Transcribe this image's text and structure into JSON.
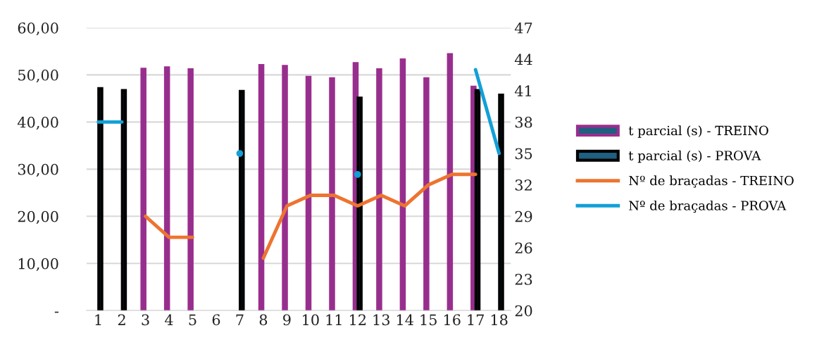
{
  "chart_data": {
    "type": "bar",
    "categories": [
      "1",
      "2",
      "3",
      "4",
      "5",
      "6",
      "7",
      "8",
      "9",
      "10",
      "11",
      "12",
      "13",
      "14",
      "15",
      "16",
      "17",
      "18"
    ],
    "series": [
      {
        "name": "t parcial (s) - TREINO",
        "color": "#9b2d8e",
        "values": [
          null,
          null,
          51.2,
          51.5,
          51.1,
          null,
          null,
          52.0,
          51.8,
          49.5,
          49.2,
          52.4,
          51.1,
          53.2,
          49.2,
          54.3,
          47.4,
          null
        ]
      },
      {
        "name": "t parcial (s) - PROVA",
        "color": "#000000",
        "values": [
          47.1,
          46.7,
          null,
          null,
          null,
          null,
          46.5,
          null,
          null,
          null,
          null,
          45.1,
          null,
          null,
          null,
          null,
          46.7,
          45.7
        ]
      },
      {
        "name": "Nº de braçadas - TREINO",
        "type": "line",
        "axis": "y2",
        "color": "#ed7430",
        "values": [
          null,
          null,
          29,
          27,
          27,
          null,
          null,
          25,
          30,
          31,
          31,
          30,
          31,
          30,
          32,
          33,
          33,
          null
        ]
      },
      {
        "name": "Nº de braçadas - PROVA",
        "type": "line",
        "axis": "y2",
        "color": "#12a0d7",
        "values": [
          38,
          38,
          null,
          null,
          null,
          null,
          35,
          null,
          null,
          null,
          null,
          33,
          null,
          null,
          null,
          null,
          43,
          35
        ]
      }
    ],
    "ylim": [
      0,
      60
    ],
    "yticks": [
      {
        "value": 0,
        "label": "-"
      },
      {
        "value": 10,
        "label": "10,00"
      },
      {
        "value": 20,
        "label": "20,00"
      },
      {
        "value": 30,
        "label": "30,00"
      },
      {
        "value": 40,
        "label": "40,00"
      },
      {
        "value": 50,
        "label": "50,00"
      },
      {
        "value": 60,
        "label": "60,00"
      }
    ],
    "y2lim": [
      20,
      47
    ],
    "y2ticks": [
      20,
      23,
      26,
      29,
      32,
      35,
      38,
      41,
      44,
      47
    ],
    "grid": "y",
    "legend": "right",
    "marker": "none",
    "line_style": "solid"
  }
}
